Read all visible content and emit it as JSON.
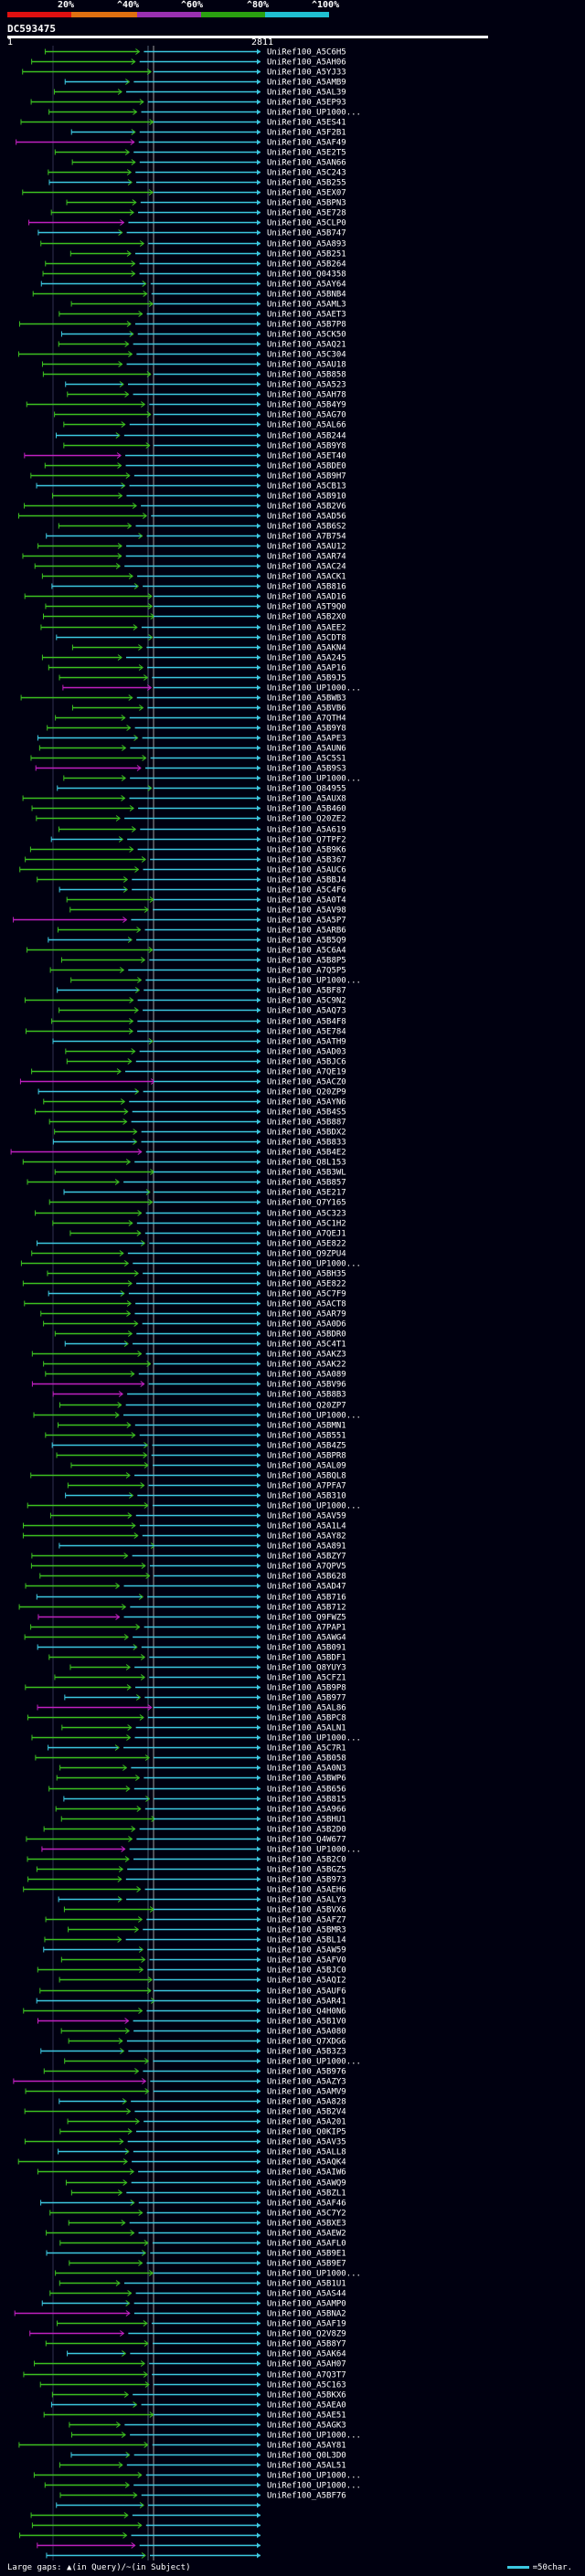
{
  "legend": {
    "ticks": [
      {
        "label": "20%",
        "color": "#e01010"
      },
      {
        "label": "^40%",
        "color": "#e07010"
      },
      {
        "label": "^60%",
        "color": "#9a30b0"
      },
      {
        "label": "^80%",
        "color": "#2aa010"
      },
      {
        "label": "^100%",
        "color": "#20c0d0"
      }
    ]
  },
  "query": {
    "name": "DC593475",
    "start_label": "1",
    "end_label": "2811",
    "length": 2811
  },
  "footer": {
    "left_text": "Large gaps: ▲(in Query)/~(in Subject)",
    "right_text": "=50char."
  },
  "chart_data": {
    "type": "alignment",
    "title": "DC593475",
    "x_unit": "query position",
    "xlim": [
      1,
      2811
    ],
    "series_colors": {
      "green": "#3cc020",
      "cyan": "#3cc8e0",
      "magenta": "#c020c0"
    },
    "row_count": 249,
    "hit_labels_visible": [
      "UniRef100_A5C6H5",
      "UniRef100_A5AH06",
      "UniRef100_A5YJ33",
      "UniRef100_A5AMB9",
      "UniRef100_A5AL39",
      "UniRef100_A5EP93",
      "UniRef100_UP1000...",
      "UniRef100_A5ES41",
      "UniRef100_A5F2B1",
      "UniRef100_A5AF49",
      "UniRef100_A5E2T5",
      "UniRef100_A5AN66",
      "UniRef100_A5C243",
      "UniRef100_A5B255",
      "UniRef100_A5EX07",
      "UniRef100_A5BPN3",
      "UniRef100_A5E728",
      "UniRef100_A5CLP0",
      "UniRef100_A5B747",
      "UniRef100_A5A893",
      "UniRef100_A5B251",
      "UniRef100_A5B264",
      "UniRef100_Q04358",
      "UniRef100_A5AY64",
      "UniRef100_A5BNB4",
      "UniRef100_A5AML3",
      "UniRef100_A5AET3",
      "UniRef100_A5B7P8",
      "UniRef100_A5CK50",
      "UniRef100_A5AQ21",
      "UniRef100_A5C304",
      "UniRef100_A5AU18",
      "UniRef100_A5B858",
      "UniRef100_A5A523",
      "UniRef100_A5AH78",
      "UniRef100_A5B4Y9",
      "UniRef100_A5AG70",
      "UniRef100_A5AL66",
      "UniRef100_A5B244",
      "UniRef100_A5B9Y8",
      "UniRef100_A5ET40",
      "UniRef100_A5BDE0",
      "UniRef100_A5B9H7",
      "UniRef100_A5CB13",
      "UniRef100_A5B910",
      "UniRef100_A5B2V6",
      "UniRef100_A5AD56",
      "UniRef100_A5B6S2",
      "UniRef100_A7B754",
      "UniRef100_A5AU12",
      "UniRef100_A5AR74",
      "UniRef100_A5AC24",
      "UniRef100_A5ACK1",
      "UniRef100_A5B816",
      "UniRef100_A5AD16",
      "UniRef100_A5T9Q0",
      "UniRef100_A5B2X0",
      "UniRef100_A5AEE2",
      "UniRef100_A5CDT8",
      "UniRef100_A5AKN4",
      "UniRef100_A5A245",
      "UniRef100_A5AP16",
      "UniRef100_A5B9J5",
      "UniRef100_UP1000...",
      "UniRef100_A5BWB3",
      "UniRef100_A5BVB6",
      "UniRef100_A7QTH4",
      "UniRef100_A5B9Y8",
      "UniRef100_A5APE3",
      "UniRef100_A5AUN6",
      "UniRef100_A5C5S1",
      "UniRef100_A5B9S3",
      "UniRef100_UP1000...",
      "UniRef100_Q84955",
      "UniRef100_A5AUX8",
      "UniRef100_A5B460",
      "UniRef100_Q20ZE2",
      "UniRef100_A5A619",
      "UniRef100_Q7TPF2",
      "UniRef100_A5B9K6",
      "UniRef100_A5B367",
      "UniRef100_A5AUC6",
      "UniRef100_A5BBJ4",
      "UniRef100_A5C4F6",
      "UniRef100_A5A0T4",
      "UniRef100_A5AV98",
      "UniRef100_A5A5P7",
      "UniRef100_A5ARB6",
      "UniRef100_A5B5Q9",
      "UniRef100_A5C6A4",
      "UniRef100_A5B8P5",
      "UniRef100_A7Q5P5",
      "UniRef100_UP1000...",
      "UniRef100_A5BF87",
      "UniRef100_A5C9N2",
      "UniRef100_A5AQ73",
      "UniRef100_A5B4F8",
      "UniRef100_A5E784",
      "UniRef100_A5ATH9",
      "UniRef100_A5AD03",
      "UniRef100_A5BJC6",
      "UniRef100_A7QE19",
      "UniRef100_A5ACZ0",
      "UniRef100_Q20ZP9",
      "UniRef100_A5AYN6",
      "UniRef100_A5B4S5",
      "UniRef100_A5B887",
      "UniRef100_A5BDX2",
      "UniRef100_A5B833",
      "UniRef100_A5B4E2",
      "UniRef100_Q8L153",
      "UniRef100_A5B3WL",
      "UniRef100_A5B857",
      "UniRef100_A5E217",
      "UniRef100_Q7Y165",
      "UniRef100_A5C323",
      "UniRef100_A5C1H2",
      "UniRef100_A7QEJ1",
      "UniRef100_A5E822",
      "UniRef100_Q9ZPU4",
      "UniRef100_UP1000...",
      "UniRef100_A5BH35",
      "UniRef100_A5E822",
      "UniRef100_A5C7F9",
      "UniRef100_A5ACT8",
      "UniRef100_A5AR79",
      "UniRef100_A5A0D6",
      "UniRef100_A5BDR0",
      "UniRef100_A5C4T1",
      "UniRef100_A5AKZ3",
      "UniRef100_A5AK22",
      "UniRef100_A5A089",
      "UniRef100_A5BV96",
      "UniRef100_A5B8B3",
      "UniRef100_Q20ZP7",
      "UniRef100_UP1000...",
      "UniRef100_A5BMN1",
      "UniRef100_A5B551",
      "UniRef100_A5B4Z5",
      "UniRef100_A5BPR8",
      "UniRef100_A5AL09",
      "UniRef100_A5BQL8",
      "UniRef100_A7PFA7",
      "UniRef100_A5B310",
      "UniRef100_UP1000...",
      "UniRef100_A5AV59",
      "UniRef100_A5A1L4",
      "UniRef100_A5AY82",
      "UniRef100_A5A891",
      "UniRef100_A5BZY7",
      "UniRef100_A7QPV5",
      "UniRef100_A5B628",
      "UniRef100_A5AD47",
      "UniRef100_A5B716",
      "UniRef100_A5B712",
      "UniRef100_Q9FWZ5",
      "UniRef100_A7PAP1",
      "UniRef100_A5AWG4",
      "UniRef100_A5B091",
      "UniRef100_A5BDF1",
      "UniRef100_Q8YUY3",
      "UniRef100_A5CFZ1",
      "UniRef100_A5B9P8",
      "UniRef100_A5B977",
      "UniRef100_A5AL86",
      "UniRef100_A5BPC8",
      "UniRef100_A5ALN1",
      "UniRef100_UP1000...",
      "UniRef100_A5C7R1",
      "UniRef100_A5B058",
      "UniRef100_A5A0N3",
      "UniRef100_A5BWP6",
      "UniRef100_A5B656",
      "UniRef100_A5B815",
      "UniRef100_A5A966",
      "UniRef100_A5BHU1",
      "UniRef100_A5B2D0",
      "UniRef100_Q4W677",
      "UniRef100_UP1000...",
      "UniRef100_A5B2C0",
      "UniRef100_A5BGZ5",
      "UniRef100_A5B973",
      "UniRef100_A5AEH6",
      "UniRef100_A5ALY3",
      "UniRef100_A5BVX6",
      "UniRef100_A5AFZ7",
      "UniRef100_A5BMR3",
      "UniRef100_A5BL14",
      "UniRef100_A5AW59",
      "UniRef100_A5AFV0",
      "UniRef100_A5BJC0",
      "UniRef100_A5AQI2",
      "UniRef100_A5AUF6",
      "UniRef100_A5AR41",
      "UniRef100_Q4H0N6",
      "UniRef100_A5B1V0",
      "UniRef100_A5A080",
      "UniRef100_Q7XDG6",
      "UniRef100_A5B3Z3",
      "UniRef100_UP1000...",
      "UniRef100_A5B976",
      "UniRef100_A5AZY3",
      "UniRef100_A5AMV9",
      "UniRef100_A5A828",
      "UniRef100_A5B2V4",
      "UniRef100_A5A201",
      "UniRef100_Q0KIP5",
      "UniRef100_A5AV35",
      "UniRef100_A5ALL8",
      "UniRef100_A5AQK4",
      "UniRef100_A5AIW6",
      "UniRef100_A5AWQ9",
      "UniRef100_A5BZL1",
      "UniRef100_A5AF46",
      "UniRef100_A5C7Y2",
      "UniRef100_A5BXE3",
      "UniRef100_A5AEW2",
      "UniRef100_A5AFL0",
      "UniRef100_A5B9E1",
      "UniRef100_A5B9E7",
      "UniRef100_UP1000...",
      "UniRef100_A5B1U1",
      "UniRef100_A5AS44",
      "UniRef100_A5AMP0",
      "UniRef100_A5BNA2",
      "UniRef100_A5AF19",
      "UniRef100_Q2V8Z9",
      "UniRef100_A5B8Y7",
      "UniRef100_A5AK64",
      "UniRef100_A5AH07",
      "UniRef100_A7Q3T7",
      "UniRef100_A5C163",
      "UniRef100_A5BKX6",
      "UniRef100_A5AEA0",
      "UniRef100_A5AE51",
      "UniRef100_A5AGK3",
      "UniRef100_UP1000...",
      "UniRef100_A5AY81",
      "UniRef100_Q0L3D0",
      "UniRef100_A5AL51",
      "UniRef100_UP1000...",
      "UniRef100_UP1000...",
      "UniRef100_A5BF76"
    ]
  }
}
